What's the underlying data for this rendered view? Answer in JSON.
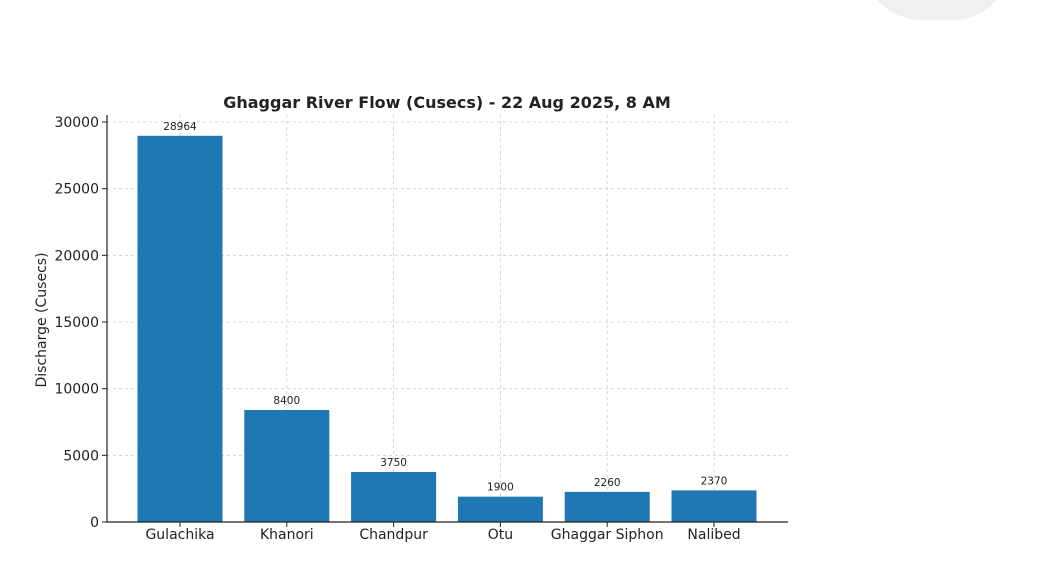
{
  "chart_data": {
    "type": "bar",
    "title": "Ghaggar River Flow (Cusecs) - 22 Aug 2025, 8 AM",
    "xlabel": "",
    "ylabel": "Discharge (Cusecs)",
    "categories": [
      "Gulachika",
      "Khanori",
      "Chandpur",
      "Otu",
      "Ghaggar Siphon",
      "Nalibed"
    ],
    "values": [
      28964,
      8400,
      3750,
      1900,
      2260,
      2370
    ],
    "data_labels": [
      "28964",
      "8400",
      "3750",
      "1900",
      "2260",
      "2370"
    ],
    "ylim": [
      0,
      30000
    ],
    "yticks": [
      0,
      5000,
      10000,
      15000,
      20000,
      25000,
      30000
    ],
    "ytick_labels": [
      "0",
      "5000",
      "10000",
      "15000",
      "20000",
      "25000",
      "30000"
    ],
    "grid": true,
    "grid_style": "dashed",
    "bar_color": "#1f77b4"
  }
}
